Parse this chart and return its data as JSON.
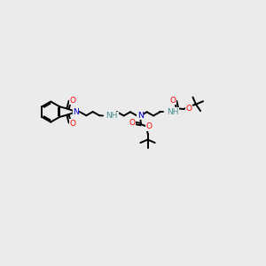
{
  "background_color": "#ebebeb",
  "atom_colors": {
    "C": "#000000",
    "N": "#0000cc",
    "O": "#ff0000",
    "H": "#4a9090"
  },
  "bond_color": "#000000",
  "figsize": [
    3.0,
    3.0
  ],
  "dpi": 100
}
